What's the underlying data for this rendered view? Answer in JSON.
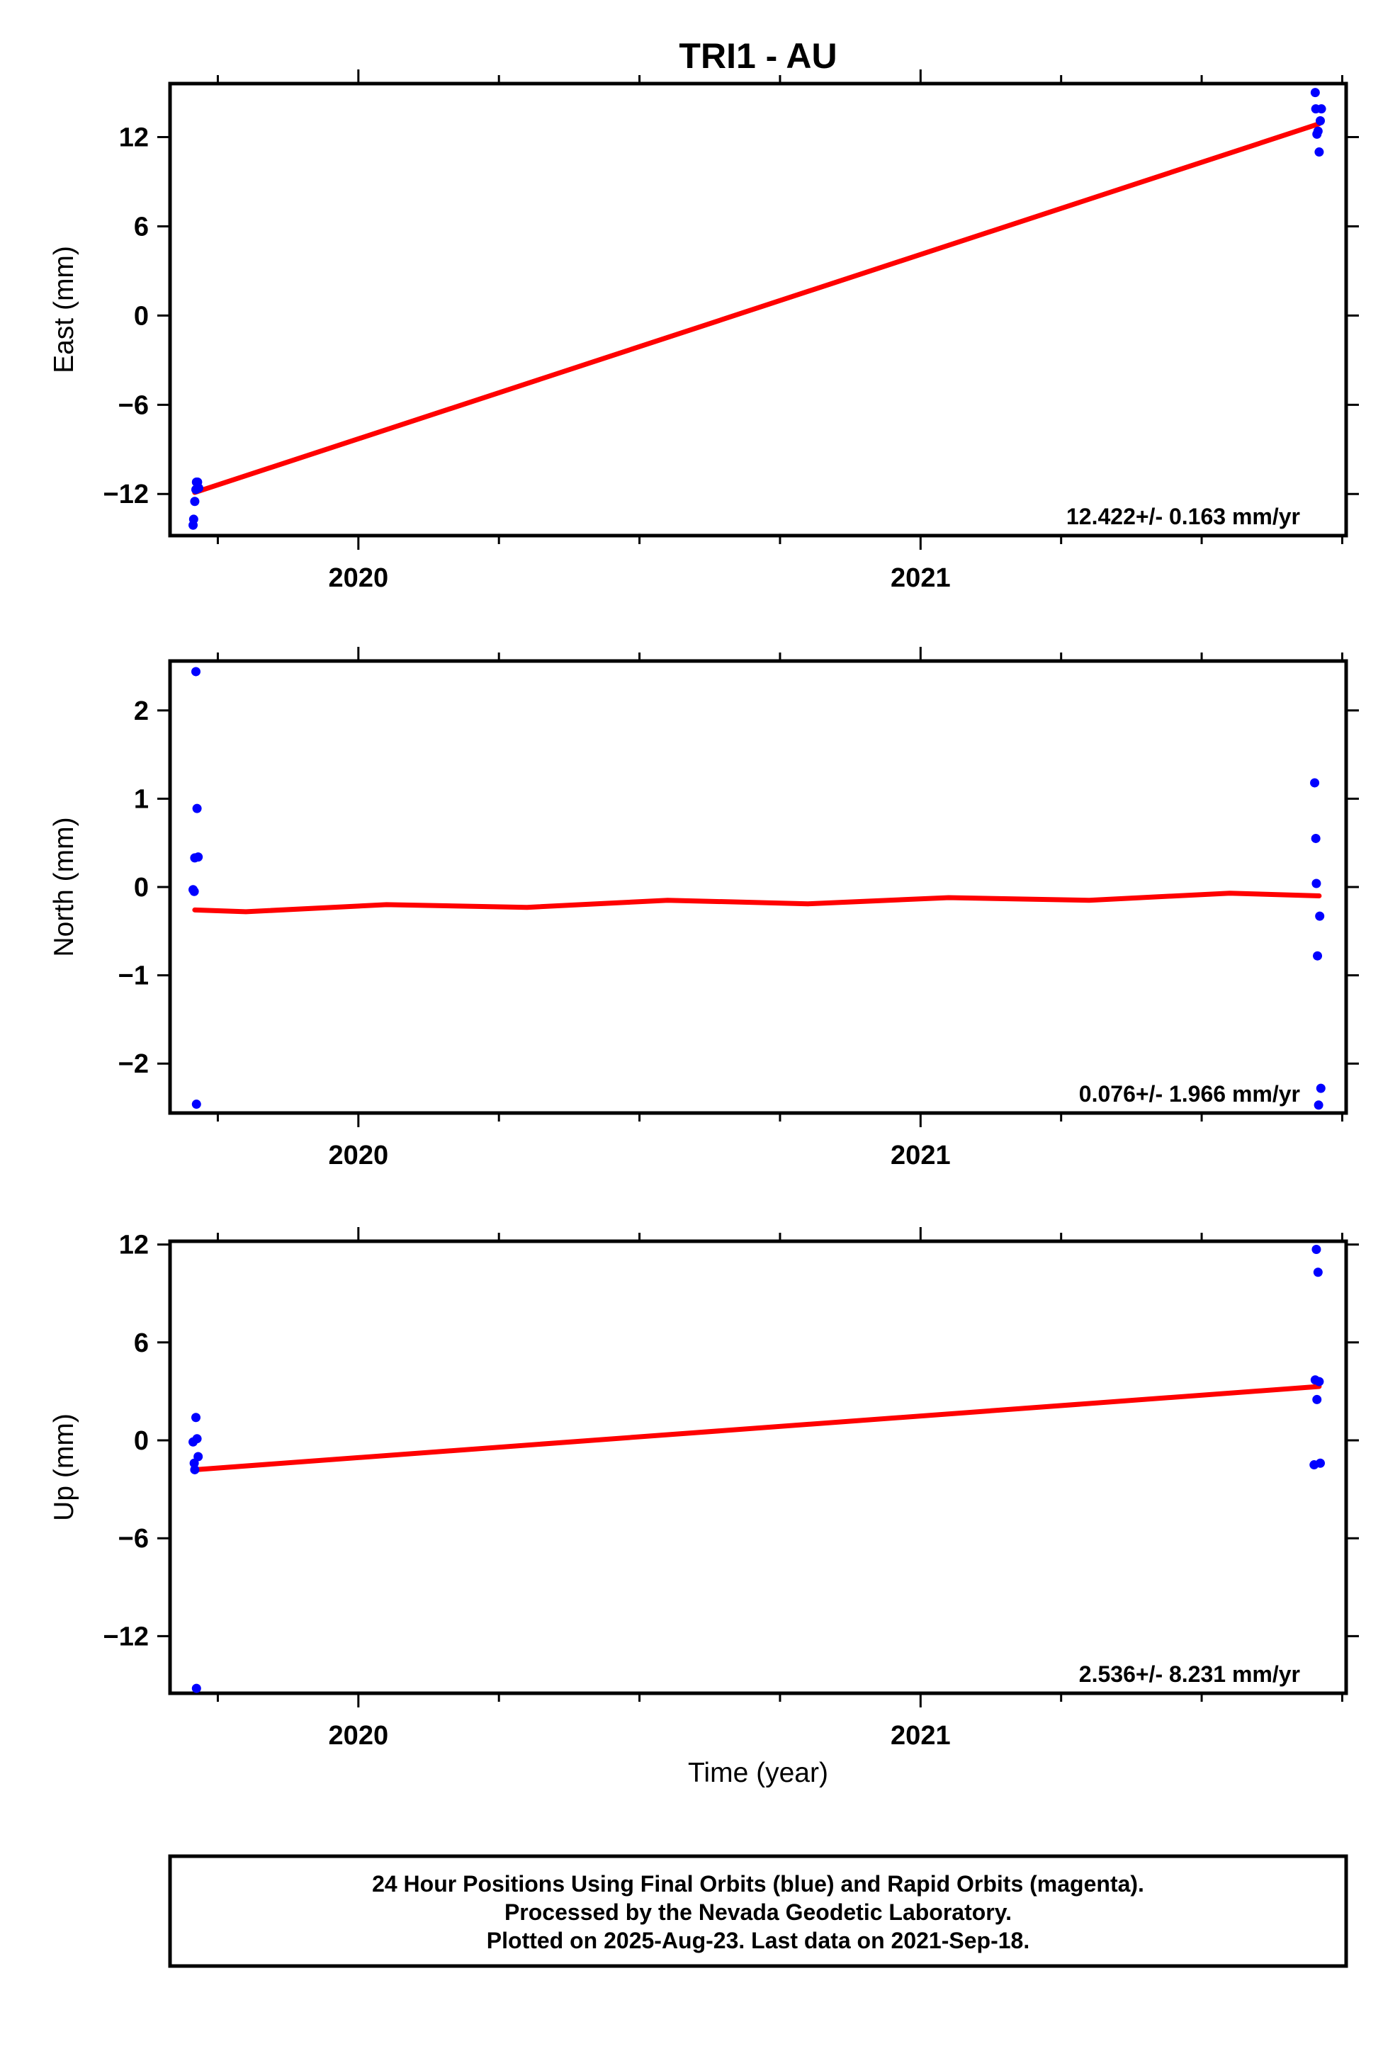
{
  "title": "TRI1 - AU",
  "colors": {
    "data_points": "#0000ff",
    "fit_line": "#ff0000",
    "frame": "#000000"
  },
  "x_axis": {
    "label": "Time (year)",
    "range": [
      2019.665,
      2021.757
    ],
    "tick_labels": [
      "2020",
      "2021"
    ]
  },
  "footer": {
    "lines": [
      "24 Hour Positions Using Final Orbits (blue) and Rapid Orbits (magenta).",
      "Processed by the Nevada Geodetic Laboratory.",
      "Plotted on 2025-Aug-23. Last data on 2021-Sep-18."
    ]
  },
  "chart_data": [
    {
      "type": "scatter",
      "name": "east",
      "ylabel": "East (mm)",
      "ylim": [
        -14.8,
        15.6
      ],
      "yticks": [
        -12,
        -6,
        0,
        6,
        12
      ],
      "ytick_labels": [
        "−12",
        "−6",
        "0",
        "6",
        "12"
      ],
      "xticks": [
        2020,
        2021
      ],
      "xtick_labels": [
        "2020",
        "2021"
      ],
      "rate_label": "12.422+/- 0.163 mm/yr",
      "points": [
        {
          "x": 2019.706,
          "y": -14.1
        },
        {
          "x": 2019.707,
          "y": -13.7
        },
        {
          "x": 2019.709,
          "y": -12.5
        },
        {
          "x": 2019.711,
          "y": -11.7
        },
        {
          "x": 2019.712,
          "y": -11.2
        },
        {
          "x": 2019.714,
          "y": -11.2
        },
        {
          "x": 2019.716,
          "y": -11.6
        },
        {
          "x": 2021.702,
          "y": 15.0
        },
        {
          "x": 2021.703,
          "y": 13.9
        },
        {
          "x": 2021.705,
          "y": 12.2
        },
        {
          "x": 2021.707,
          "y": 12.4
        },
        {
          "x": 2021.709,
          "y": 11.0
        },
        {
          "x": 2021.711,
          "y": 13.1
        },
        {
          "x": 2021.713,
          "y": 13.9
        }
      ],
      "fit": [
        {
          "x": 2019.709,
          "y": -11.9
        },
        {
          "x": 2021.709,
          "y": 12.9
        }
      ]
    },
    {
      "type": "scatter",
      "name": "north",
      "ylabel": "North (mm)",
      "ylim": [
        -2.56,
        2.56
      ],
      "yticks": [
        -2,
        -1,
        0,
        1,
        2
      ],
      "ytick_labels": [
        "−2",
        "−1",
        "0",
        "1",
        "2"
      ],
      "xticks": [
        2020,
        2021
      ],
      "xtick_labels": [
        "2020",
        "2021"
      ],
      "rate_label": "0.076+/- 1.966 mm/yr",
      "points": [
        {
          "x": 2019.706,
          "y": -0.03
        },
        {
          "x": 2019.708,
          "y": -0.05
        },
        {
          "x": 2019.709,
          "y": 0.33
        },
        {
          "x": 2019.711,
          "y": 2.44
        },
        {
          "x": 2019.712,
          "y": -2.46
        },
        {
          "x": 2019.713,
          "y": 0.89
        },
        {
          "x": 2019.715,
          "y": 0.34
        },
        {
          "x": 2021.701,
          "y": 1.18
        },
        {
          "x": 2021.703,
          "y": 0.55
        },
        {
          "x": 2021.704,
          "y": 0.04
        },
        {
          "x": 2021.706,
          "y": -0.78
        },
        {
          "x": 2021.708,
          "y": -2.47
        },
        {
          "x": 2021.71,
          "y": -0.33
        },
        {
          "x": 2021.712,
          "y": -2.28
        }
      ],
      "fit": [
        {
          "x": 2019.709,
          "y": -0.26
        },
        {
          "x": 2019.8,
          "y": -0.28
        },
        {
          "x": 2020.05,
          "y": -0.2
        },
        {
          "x": 2020.3,
          "y": -0.23
        },
        {
          "x": 2020.55,
          "y": -0.15
        },
        {
          "x": 2020.8,
          "y": -0.19
        },
        {
          "x": 2021.05,
          "y": -0.12
        },
        {
          "x": 2021.3,
          "y": -0.15
        },
        {
          "x": 2021.55,
          "y": -0.07
        },
        {
          "x": 2021.709,
          "y": -0.1
        }
      ]
    },
    {
      "type": "scatter",
      "name": "up",
      "ylabel": "Up (mm)",
      "ylim": [
        -15.5,
        12.2
      ],
      "yticks": [
        -12,
        -6,
        0,
        6,
        12
      ],
      "ytick_labels": [
        "−12",
        "−6",
        "0",
        "6",
        "12"
      ],
      "xticks": [
        2020,
        2021
      ],
      "xtick_labels": [
        "2020",
        "2021"
      ],
      "rate_label": "2.536+/- 8.231 mm/yr",
      "points": [
        {
          "x": 2019.706,
          "y": -0.1
        },
        {
          "x": 2019.708,
          "y": -1.4
        },
        {
          "x": 2019.709,
          "y": -1.8
        },
        {
          "x": 2019.711,
          "y": 1.4
        },
        {
          "x": 2019.712,
          "y": -15.2
        },
        {
          "x": 2019.713,
          "y": 0.1
        },
        {
          "x": 2019.715,
          "y": -1.0
        },
        {
          "x": 2021.7,
          "y": -1.5
        },
        {
          "x": 2021.702,
          "y": 3.7
        },
        {
          "x": 2021.704,
          "y": 11.7
        },
        {
          "x": 2021.705,
          "y": 2.5
        },
        {
          "x": 2021.707,
          "y": 10.3
        },
        {
          "x": 2021.709,
          "y": 3.6
        },
        {
          "x": 2021.711,
          "y": -1.4
        }
      ],
      "fit": [
        {
          "x": 2019.709,
          "y": -1.8
        },
        {
          "x": 2021.709,
          "y": 3.3
        }
      ]
    }
  ]
}
